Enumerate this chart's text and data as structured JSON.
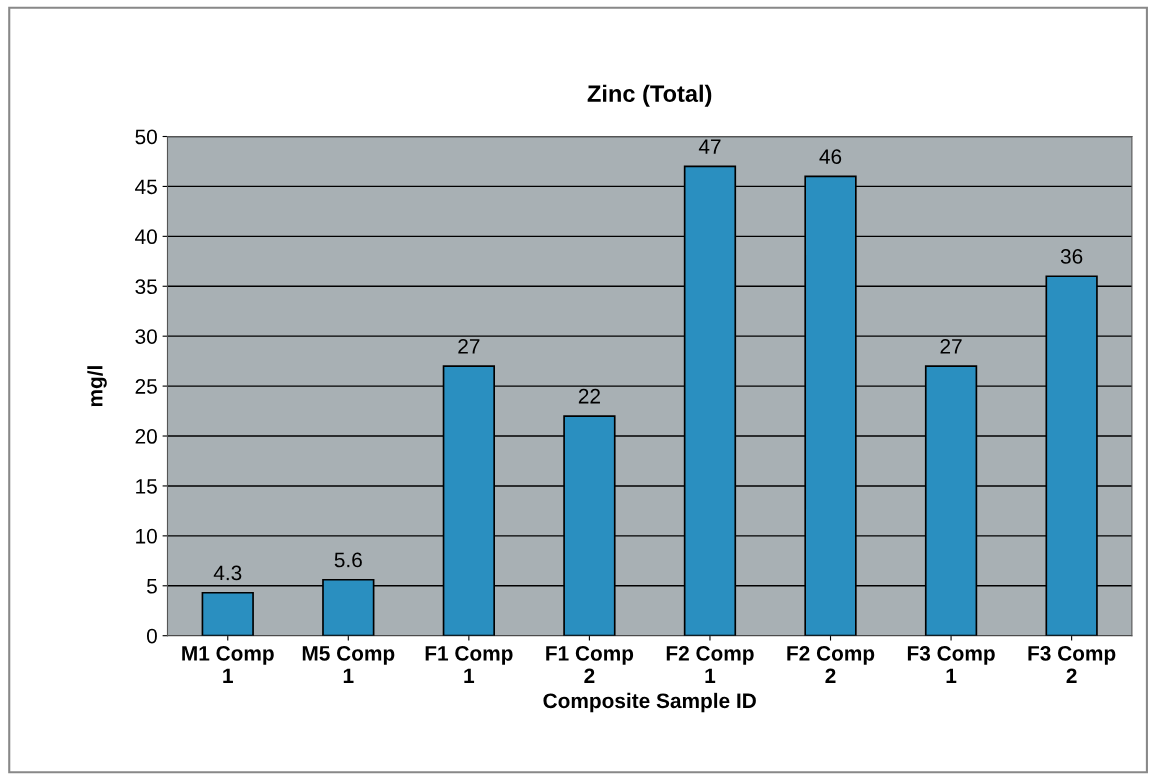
{
  "chart_data": {
    "type": "bar",
    "title": "Zinc (Total)",
    "xlabel": "Composite Sample ID",
    "ylabel": "mg/l",
    "categories": [
      "M1 Comp\n1",
      "M5 Comp\n1",
      "F1 Comp\n1",
      "F1 Comp\n2",
      "F2 Comp\n1",
      "F2 Comp\n2",
      "F3 Comp\n1",
      "F3 Comp\n2"
    ],
    "values": [
      4.3,
      5.6,
      27,
      22,
      47,
      46,
      27,
      36
    ],
    "color": "#2a8fc0",
    "ylim": [
      0,
      50
    ],
    "yticks": [
      0,
      5,
      10,
      15,
      20,
      25,
      30,
      35,
      40,
      45,
      50
    ],
    "grid": "y",
    "data_labels": true
  }
}
